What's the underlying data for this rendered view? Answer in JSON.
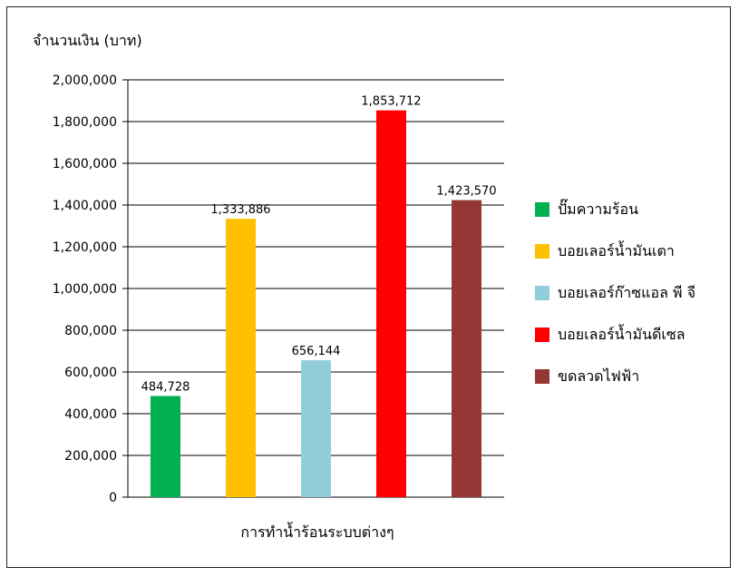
{
  "chart_data": {
    "type": "bar",
    "title": "",
    "ylabel": "จำนวนเงิน (บาท)",
    "xlabel": "การทำน้ำร้อนระบบต่างๆ",
    "ylim": [
      0,
      2000000
    ],
    "yticks": [
      0,
      200000,
      400000,
      600000,
      800000,
      1000000,
      1200000,
      1400000,
      1600000,
      1800000,
      2000000
    ],
    "ytick_labels": [
      "0",
      "200,000",
      "400,000",
      "600,000",
      "800,000",
      "1,000,000",
      "1,200,000",
      "1,400,000",
      "1,600,000",
      "1,800,000",
      "2,000,000"
    ],
    "grid": true,
    "legend_position": "right",
    "categories": [
      "ปั๊มความร้อน",
      "บอยเลอร์น้ำมันเตา",
      "บอยเลอร์ก๊าซแอล พี จี",
      "บอยเลอร์น้ำมันดีเซล",
      "ขดลวดไฟฟ้า"
    ],
    "values": [
      484728,
      1333886,
      656144,
      1853712,
      1423570
    ],
    "value_labels": [
      "484,728",
      "1,333,886",
      "656,144",
      "1,853,712",
      "1,423,570"
    ],
    "colors": [
      "#00b050",
      "#ffc000",
      "#92cddc",
      "#ff0000",
      "#953735"
    ]
  }
}
